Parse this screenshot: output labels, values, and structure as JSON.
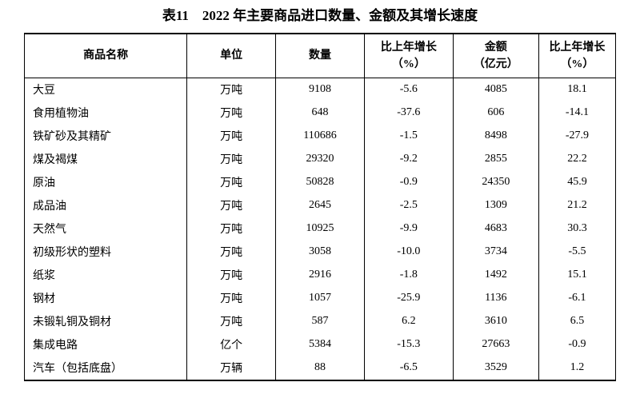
{
  "page": {
    "title": "表11　2022 年主要商品进口数量、金额及其增长速度"
  },
  "colors": {
    "background": "#ffffff",
    "text": "#000000",
    "border": "#000000"
  },
  "table": {
    "headers": [
      {
        "label": "商品名称",
        "sub": ""
      },
      {
        "label": "单位",
        "sub": ""
      },
      {
        "label": "数量",
        "sub": ""
      },
      {
        "label": "比上年增长",
        "sub": "（%）"
      },
      {
        "label": "金额",
        "sub": "（亿元）"
      },
      {
        "label": "比上年增长",
        "sub": "（%）"
      }
    ],
    "col_keys": [
      "commodity-name",
      "unit",
      "quantity",
      "quantity-growth",
      "amount",
      "amount-growth"
    ],
    "rows": [
      [
        "大豆",
        "万吨",
        "9108",
        "-5.6",
        "4085",
        "18.1"
      ],
      [
        "食用植物油",
        "万吨",
        "648",
        "-37.6",
        "606",
        "-14.1"
      ],
      [
        "铁矿砂及其精矿",
        "万吨",
        "110686",
        "-1.5",
        "8498",
        "-27.9"
      ],
      [
        "煤及褐煤",
        "万吨",
        "29320",
        "-9.2",
        "2855",
        "22.2"
      ],
      [
        "原油",
        "万吨",
        "50828",
        "-0.9",
        "24350",
        "45.9"
      ],
      [
        "成品油",
        "万吨",
        "2645",
        "-2.5",
        "1309",
        "21.2"
      ],
      [
        "天然气",
        "万吨",
        "10925",
        "-9.9",
        "4683",
        "30.3"
      ],
      [
        "初级形状的塑料",
        "万吨",
        "3058",
        "-10.0",
        "3734",
        "-5.5"
      ],
      [
        "纸浆",
        "万吨",
        "2916",
        "-1.8",
        "1492",
        "15.1"
      ],
      [
        "钢材",
        "万吨",
        "1057",
        "-25.9",
        "1136",
        "-6.1"
      ],
      [
        "未锻轧铜及铜材",
        "万吨",
        "587",
        "6.2",
        "3610",
        "6.5"
      ],
      [
        "集成电路",
        "亿个",
        "5384",
        "-15.3",
        "27663",
        "-0.9"
      ],
      [
        "汽车（包括底盘）",
        "万辆",
        "88",
        "-6.5",
        "3529",
        "1.2"
      ]
    ]
  }
}
